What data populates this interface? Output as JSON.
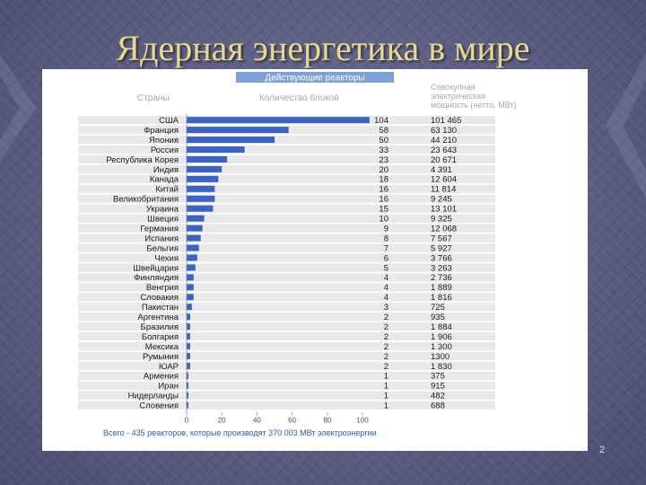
{
  "slide": {
    "title": "Ядерная энергетика в мире",
    "page_number": "2"
  },
  "table": {
    "banner": "Действующие реакторы",
    "col_country": "Страны",
    "col_units": "Количество блоков",
    "col_capacity": "Совокупная электрическая мощность (нетто, МВт)",
    "col_capacity_lines": [
      "Совокупная",
      "электрическая",
      "мощность (нетто, МВт)"
    ],
    "footer": "Всего - 435 реакторов, которые производят 370 003 МВт электроэнергии"
  },
  "colors": {
    "bar": "#3b63c4",
    "banner": "#7da2d6",
    "header_text": "#a8a8a8",
    "row_stripe": "#e9e9e9",
    "footer_text": "#2f5ea8",
    "title": "#e8d98a"
  },
  "chart_data": {
    "type": "bar",
    "orientation": "horizontal",
    "categories": [
      "США",
      "Франция",
      "Япония",
      "Россия",
      "Республика Корея",
      "Индия",
      "Канада",
      "Китай",
      "Великобритания",
      "Украина",
      "Швеция",
      "Германия",
      "Испания",
      "Бельгия",
      "Чехия",
      "Швейцария",
      "Финляндия",
      "Венгрия",
      "Словакия",
      "Пакистан",
      "Аргентина",
      "Бразилия",
      "Болгария",
      "Мексика",
      "Румыния",
      "ЮАР",
      "Армения",
      "Иран",
      "Нидерланды",
      "Словения"
    ],
    "values": [
      104,
      58,
      50,
      33,
      23,
      20,
      18,
      16,
      16,
      15,
      10,
      9,
      8,
      7,
      6,
      5,
      4,
      4,
      4,
      3,
      2,
      2,
      2,
      2,
      2,
      2,
      1,
      1,
      1,
      1
    ],
    "capacity_labels": [
      "101 465",
      "63 130",
      "44 210",
      "23 643",
      "20 671",
      "4 391",
      "12 604",
      "11 814",
      "9 245",
      "13 101",
      "9 325",
      "12 068",
      "7 567",
      "5 927",
      "3 766",
      "3 263",
      "2 736",
      "1 889",
      "1 816",
      "725",
      "935",
      "1 884",
      "1 906",
      "1 300",
      "1300",
      "1 830",
      "375",
      "915",
      "482",
      "688"
    ],
    "xlim": [
      0,
      100
    ],
    "xticks": [
      "0",
      "20",
      "40",
      "60",
      "80",
      "100"
    ],
    "grid": false,
    "legend": "none"
  }
}
